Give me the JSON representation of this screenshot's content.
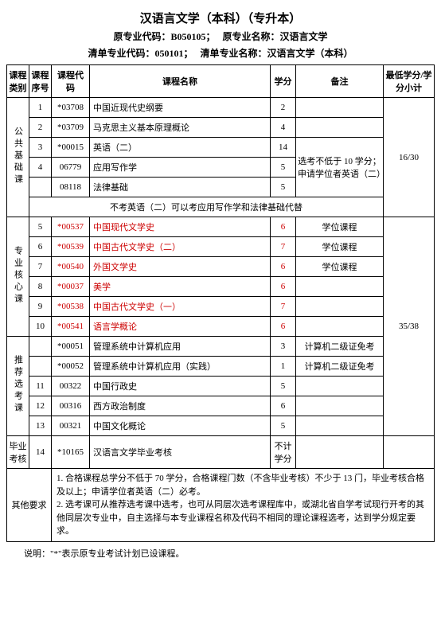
{
  "title": "汉语言文学（本科）（专升本）",
  "orig_code_label": "原专业代码：",
  "orig_code": "B050105；",
  "orig_name_label": "原专业名称：",
  "orig_name": "汉语言文学",
  "list_code_label": "清单专业代码：",
  "list_code": "050101；",
  "list_name_label": "清单专业名称：",
  "list_name": "汉语言文学（本科）",
  "headers": {
    "cat": "课程类别",
    "seq": "课程序号",
    "code": "课程代码",
    "name": "课程名称",
    "credit": "学分",
    "remark": "备注",
    "min": "最低学分/学分小计"
  },
  "cat": {
    "public": "公共基础课",
    "core": "专业核心课",
    "elective": "推荐选考课",
    "grad": "毕业考核",
    "other": "其他要求"
  },
  "public_rows": [
    {
      "seq": "1",
      "code": "*03708",
      "name": "中国近现代史纲要",
      "credit": "2",
      "remark": ""
    },
    {
      "seq": "2",
      "code": "*03709",
      "name": "马克思主义基本原理概论",
      "credit": "4",
      "remark": ""
    },
    {
      "seq": "3",
      "code": "*00015",
      "name": "英语（二）",
      "credit": "14"
    },
    {
      "seq": "4",
      "code": "06779",
      "name": "应用写作学",
      "credit": "5"
    },
    {
      "seq": "",
      "code": "08118",
      "name": "法律基础",
      "credit": "5"
    }
  ],
  "public_remark": "选考不低于 10 学分；申请学位者英语（二）",
  "public_note": "不考英语（二）可以考应用写作学和法律基础代替",
  "public_min": "16/30",
  "core_rows": [
    {
      "seq": "5",
      "code": "*00537",
      "name": "中国现代文学史",
      "credit": "6",
      "remark": "学位课程"
    },
    {
      "seq": "6",
      "code": "*00539",
      "name": "中国古代文学史（二）",
      "credit": "7",
      "remark": "学位课程"
    },
    {
      "seq": "7",
      "code": "*00540",
      "name": "外国文学史",
      "credit": "6",
      "remark": "学位课程"
    },
    {
      "seq": "8",
      "code": "*00037",
      "name": "美学",
      "credit": "6",
      "remark": ""
    },
    {
      "seq": "9",
      "code": "*00538",
      "name": "中国古代文学史（一）",
      "credit": "7",
      "remark": ""
    },
    {
      "seq": "10",
      "code": "*00541",
      "name": "语言学概论",
      "credit": "6",
      "remark": ""
    }
  ],
  "core_min": "35/38",
  "elective_rows": [
    {
      "seq": "",
      "code": "*00051",
      "name": "管理系统中计算机应用",
      "credit": "3",
      "remark": "计算机二级证免考"
    },
    {
      "seq": "",
      "code": "*00052",
      "name": "管理系统中计算机应用（实践）",
      "credit": "1",
      "remark": "计算机二级证免考"
    },
    {
      "seq": "11",
      "code": "00322",
      "name": "中国行政史",
      "credit": "5",
      "remark": ""
    },
    {
      "seq": "12",
      "code": "00316",
      "name": "西方政治制度",
      "credit": "6",
      "remark": ""
    },
    {
      "seq": "13",
      "code": "00321",
      "name": "中国文化概论",
      "credit": "5",
      "remark": ""
    }
  ],
  "grad_row": {
    "seq": "14",
    "code": "*10165",
    "name": "汉语言文学毕业考核",
    "credit": "不计学分",
    "remark": ""
  },
  "other_notes": [
    "1. 合格课程总学分不低于 70 学分，合格课程门数（不含毕业考核）不少于 13 门，毕业考核合格及以上；申请学位者英语（二）必考。",
    "2. 选考课可从推荐选考课中选考，也可从同层次选考课程库中，或湖北省自学考试现行开考的其他同层次专业中，自主选择与本专业课程名称及代码不相同的理论课程选考，达到学分规定要求。"
  ],
  "footnote": "说明：\"*\"表示原专业考试计划已设课程。"
}
